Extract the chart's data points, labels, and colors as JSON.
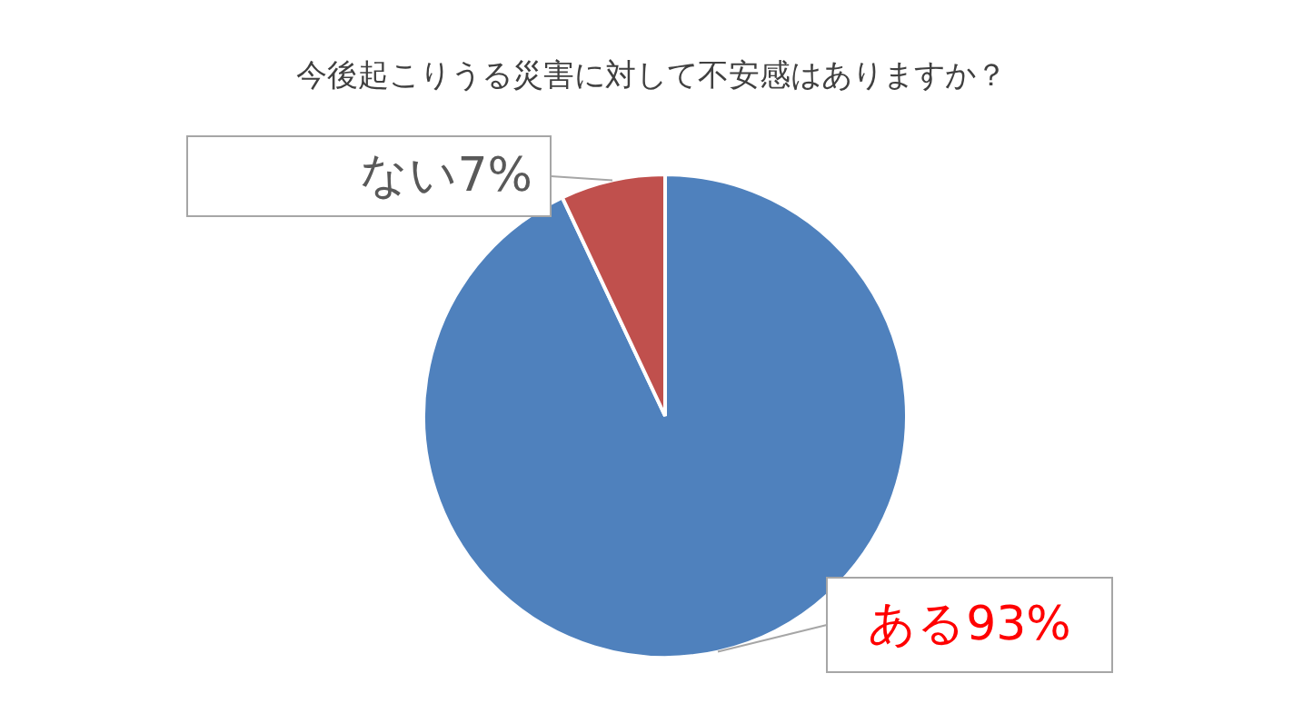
{
  "chart_data": {
    "type": "pie",
    "title": "今後起こりうる災害に対して不安感はありますか？",
    "categories": [
      "ある",
      "ない"
    ],
    "values": [
      93,
      7
    ],
    "colors": [
      "#4f81bd",
      "#c0504d"
    ],
    "value_labels": [
      "93%",
      "7%"
    ],
    "legend": false
  }
}
